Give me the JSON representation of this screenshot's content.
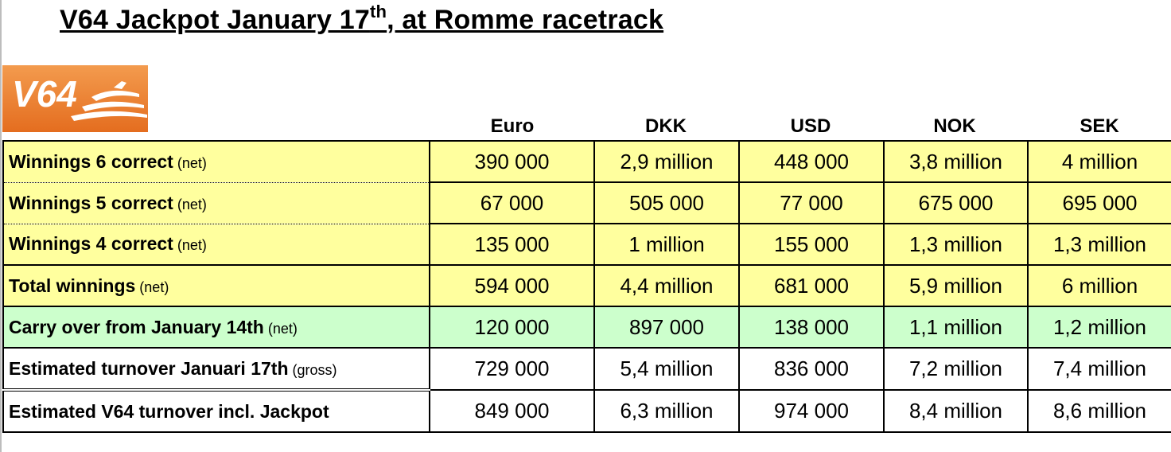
{
  "title": {
    "prefix": "V64 Jackpot January 17",
    "suffix_sup": "th",
    "rest": ", at Romme racetrack"
  },
  "logo": {
    "text": "V64",
    "icon": "horse-trotting-icon",
    "color": "#e87a2c"
  },
  "table": {
    "columns": [
      "Euro",
      "DKK",
      "USD",
      "NOK",
      "SEK"
    ],
    "rows": [
      {
        "label": "Winnings 6 correct",
        "note": "(net)",
        "values": [
          "390 000",
          "2,9 million",
          "448 000",
          "3,8 million",
          "4 million"
        ]
      },
      {
        "label": "Winnings 5 correct",
        "note": "(net)",
        "values": [
          "67 000",
          "505 000",
          "77 000",
          "675 000",
          "695 000"
        ]
      },
      {
        "label": "Winnings 4 correct",
        "note": "(net)",
        "values": [
          "135 000",
          "1 million",
          "155 000",
          "1,3 million",
          "1,3 million"
        ]
      },
      {
        "label": "Total winnings",
        "note": "(net)",
        "values": [
          "594 000",
          "4,4 million",
          "681 000",
          "5,9 million",
          "6 million"
        ]
      },
      {
        "label": "Carry over from January 14th",
        "note": "(net)",
        "values": [
          "120 000",
          "897 000",
          "138 000",
          "1,1 million",
          "1,2 million"
        ]
      },
      {
        "label": "Estimated turnover Januari 17th",
        "note": "(gross)",
        "values": [
          "729 000",
          "5,4 million",
          "836 000",
          "7,2 million",
          "7,4 million"
        ]
      },
      {
        "label": "Estimated V64 turnover incl. Jackpot",
        "note": "",
        "values": [
          "849 000",
          "6,3 million",
          "974 000",
          "8,4 million",
          "8,6 million"
        ]
      }
    ]
  },
  "colors": {
    "yellow_rows": "#ffff9e",
    "green_row": "#ccffcc",
    "white_rows": "#ffffff"
  }
}
